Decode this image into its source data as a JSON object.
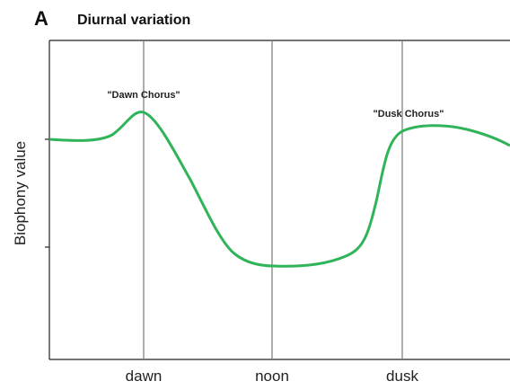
{
  "panel_label": "A",
  "title": "Diurnal variation",
  "y_axis_label": "Biophony value",
  "x_labels": [
    "dawn",
    "noon",
    "dusk"
  ],
  "annotations": [
    "\"Dawn Chorus\"",
    "\"Dusk Chorus\""
  ]
}
